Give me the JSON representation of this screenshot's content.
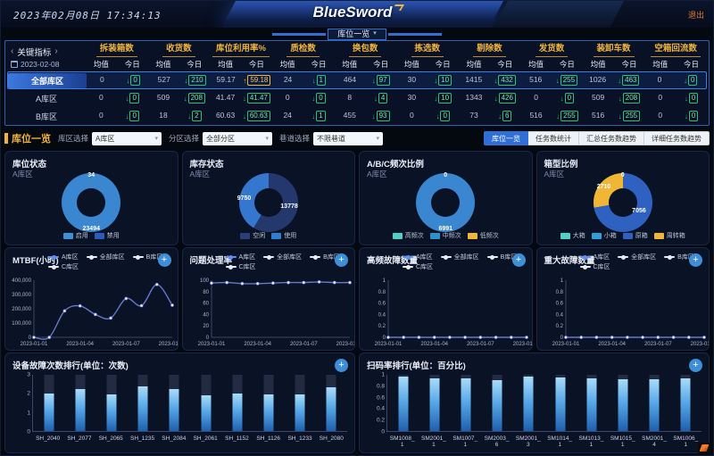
{
  "colors": {
    "accent_orange": "#f0b43c",
    "accent_green": "#2fbf71",
    "accent_blue": "#2f6fd6",
    "line_color": "#6979c9",
    "legend_a_color": "#5b8ff9",
    "legend_other_color": "#e6ecf8"
  },
  "icons": {
    "prev": "‹",
    "next": "›",
    "caret_down": "▾",
    "arrow_down": "↓",
    "arrow_up": "↑",
    "plus": "+"
  },
  "header": {
    "datetime": "2023年02月08日 17:34:13",
    "logo_text": "BlueSword",
    "logout_label": "退出",
    "center_tab": "库位一览"
  },
  "kpi_table": {
    "title": "关键指标",
    "date": "2023-02-08",
    "sub_avg": "均值",
    "sub_today": "今日",
    "columns": [
      "拆装箱数",
      "收货数",
      "库位利用率%",
      "质检数",
      "换包数",
      "拣选数",
      "剔除数",
      "发货数",
      "装卸车数",
      "空箱回流数"
    ],
    "rows": [
      {
        "name": "全部库区",
        "active": true,
        "cells": [
          {
            "avg": "0",
            "today": "0",
            "dir": "down"
          },
          {
            "avg": "527",
            "today": "210",
            "dir": "down"
          },
          {
            "avg": "59.17",
            "today": "59.18",
            "dir": "up"
          },
          {
            "avg": "24",
            "today": "1",
            "dir": "down"
          },
          {
            "avg": "464",
            "today": "97",
            "dir": "down"
          },
          {
            "avg": "30",
            "today": "10",
            "dir": "down"
          },
          {
            "avg": "1415",
            "today": "432",
            "dir": "down"
          },
          {
            "avg": "516",
            "today": "255",
            "dir": "down"
          },
          {
            "avg": "1026",
            "today": "463",
            "dir": "down"
          },
          {
            "avg": "0",
            "today": "0",
            "dir": "down"
          }
        ]
      },
      {
        "name": "A库区",
        "active": false,
        "cells": [
          {
            "avg": "0",
            "today": "0",
            "dir": "down"
          },
          {
            "avg": "509",
            "today": "208",
            "dir": "down"
          },
          {
            "avg": "41.47",
            "today": "41.47",
            "dir": "down"
          },
          {
            "avg": "0",
            "today": "0",
            "dir": "down"
          },
          {
            "avg": "8",
            "today": "4",
            "dir": "down"
          },
          {
            "avg": "30",
            "today": "10",
            "dir": "down"
          },
          {
            "avg": "1343",
            "today": "426",
            "dir": "down"
          },
          {
            "avg": "0",
            "today": "0",
            "dir": "down"
          },
          {
            "avg": "509",
            "today": "208",
            "dir": "down"
          },
          {
            "avg": "0",
            "today": "0",
            "dir": "down"
          }
        ]
      },
      {
        "name": "B库区",
        "active": false,
        "cells": [
          {
            "avg": "0",
            "today": "0",
            "dir": "down"
          },
          {
            "avg": "18",
            "today": "2",
            "dir": "down"
          },
          {
            "avg": "60.63",
            "today": "60.63",
            "dir": "down"
          },
          {
            "avg": "24",
            "today": "1",
            "dir": "down"
          },
          {
            "avg": "455",
            "today": "93",
            "dir": "down"
          },
          {
            "avg": "0",
            "today": "0",
            "dir": "down"
          },
          {
            "avg": "73",
            "today": "6",
            "dir": "down"
          },
          {
            "avg": "516",
            "today": "255",
            "dir": "down"
          },
          {
            "avg": "516",
            "today": "255",
            "dir": "down"
          },
          {
            "avg": "0",
            "today": "0",
            "dir": "down"
          }
        ]
      }
    ]
  },
  "filter_bar": {
    "section_title": "库位一览",
    "filters": [
      {
        "label": "库区选择",
        "value": "A库区"
      },
      {
        "label": "分区选择",
        "value": "全部分区"
      },
      {
        "label": "巷道选择",
        "value": "不限巷道"
      }
    ],
    "view_tabs": [
      {
        "label": "库位一览",
        "active": true
      },
      {
        "label": "任务数统计",
        "active": false
      },
      {
        "label": "汇总任务数趋势",
        "active": false
      },
      {
        "label": "详细任务数趋势",
        "active": false
      }
    ]
  },
  "chart_data": {
    "donuts": [
      {
        "type": "pie",
        "title": "库位状态",
        "subtitle": "A库区",
        "segments": [
          {
            "name": "启用",
            "value": 23494,
            "color": "#3a86d0"
          },
          {
            "name": "禁用",
            "value": 34,
            "color": "#24407e"
          }
        ],
        "legend": [
          {
            "name": "启用",
            "color": "#3d8fd8"
          },
          {
            "name": "禁用",
            "color": "#2a5cb8"
          }
        ],
        "labels": [
          {
            "text": "34",
            "pos": "top"
          },
          {
            "text": "23494",
            "pos": "bottom"
          }
        ]
      },
      {
        "type": "pie",
        "title": "库存状态",
        "subtitle": "A库区",
        "segments": [
          {
            "name": "空闲",
            "value": 13778,
            "color": "#24386e"
          },
          {
            "name": "使用",
            "value": 9750,
            "color": "#3577cf"
          }
        ],
        "legend": [
          {
            "name": "空闲",
            "color": "#2a3f78"
          },
          {
            "name": "使用",
            "color": "#2e7fd0"
          }
        ],
        "labels": [
          {
            "text": "9750",
            "pos": "left"
          },
          {
            "text": "13778",
            "pos": "right"
          }
        ]
      },
      {
        "type": "pie",
        "title": "A/B/C频次比例",
        "subtitle": "A库区",
        "segments": [
          {
            "name": "高频次",
            "value": 0,
            "color": "#52d0c8"
          },
          {
            "name": "中频次",
            "value": 6991,
            "color": "#3a86d0"
          },
          {
            "name": "低频次",
            "value": 0,
            "color": "#f2b636"
          }
        ],
        "legend": [
          {
            "name": "高频次",
            "color": "#52d0c8"
          },
          {
            "name": "中频次",
            "color": "#2e8fd0"
          },
          {
            "name": "低频次",
            "color": "#f2b636"
          }
        ],
        "labels": [
          {
            "text": "0",
            "pos": "top"
          },
          {
            "text": "6991",
            "pos": "bottom"
          }
        ]
      },
      {
        "type": "pie",
        "title": "箱型比例",
        "subtitle": "A库区",
        "segments": [
          {
            "name": "大箱",
            "value": 0,
            "color": "#52d0c8"
          },
          {
            "name": "小箱",
            "value": 0,
            "color": "#2e9fd8"
          },
          {
            "name": "原箱",
            "value": 7056,
            "color": "#2f62c0"
          },
          {
            "name": "周转箱",
            "value": 2710,
            "color": "#f2b636"
          }
        ],
        "legend": [
          {
            "name": "大箱",
            "color": "#52d0c8"
          },
          {
            "name": "小箱",
            "color": "#2e9fd8"
          },
          {
            "name": "原箱",
            "color": "#2f62c0"
          },
          {
            "name": "周转箱",
            "color": "#f2b636"
          }
        ],
        "labels": [
          {
            "text": "0",
            "pos": "top"
          },
          {
            "text": "2710",
            "pos": "topleft"
          },
          {
            "text": "7056",
            "pos": "bottomright"
          }
        ]
      }
    ],
    "line_charts": [
      {
        "type": "line",
        "title": "MTBF(小时)",
        "legend": [
          "A库区",
          "全部库区",
          "B库区",
          "C库区"
        ],
        "x_ticks": [
          "2023-01-01",
          "2023-01-04",
          "2023-01-07",
          "2023-01-10"
        ],
        "y_ticks": [
          "400,000",
          "300,000",
          "200,000",
          "100,000",
          "0"
        ],
        "y_max": 400000,
        "series": [
          {
            "name": "A库区",
            "values": [
              0,
              0,
              185000,
              220000,
              160000,
              135000,
              272000,
              222000,
              370000,
              225000
            ]
          }
        ]
      },
      {
        "type": "line",
        "title": "问题处理率",
        "legend": [
          "A库区",
          "全部库区",
          "B库区",
          "C库区"
        ],
        "x_ticks": [
          "2023-01-01",
          "2023-01-04",
          "2023-01-07",
          "2023-01-10"
        ],
        "y_ticks": [
          "100",
          "80",
          "60",
          "40",
          "20",
          "0"
        ],
        "y_max": 100,
        "series": [
          {
            "name": "A库区",
            "values": [
              95,
              96,
              94,
              94,
              95,
              96,
              96,
              97,
              96,
              96
            ]
          }
        ]
      },
      {
        "type": "line",
        "title": "高频故障数量",
        "legend": [
          "A库区",
          "全部库区",
          "B库区",
          "C库区"
        ],
        "x_ticks": [
          "2023-01-01",
          "2023-01-04",
          "2023-01-07",
          "2023-01-10"
        ],
        "y_ticks": [
          "1",
          "0.8",
          "0.6",
          "0.4",
          "0.2",
          "0"
        ],
        "y_max": 1,
        "series": [
          {
            "name": "A库区",
            "values": [
              0,
              0,
              0,
              0,
              0,
              0,
              0,
              0,
              0,
              0
            ]
          }
        ]
      },
      {
        "type": "line",
        "title": "重大故障数量",
        "legend": [
          "A库区",
          "全部库区",
          "B库区",
          "C库区"
        ],
        "x_ticks": [
          "2023-01-01",
          "2023-01-04",
          "2023-01-07",
          "2023-01-10"
        ],
        "y_ticks": [
          "1",
          "0.8",
          "0.6",
          "0.4",
          "0.2",
          "0"
        ],
        "y_max": 1,
        "series": [
          {
            "name": "A库区",
            "values": [
              0,
              0,
              0,
              0,
              0,
              0,
              0,
              0,
              0,
              0
            ]
          }
        ]
      }
    ],
    "bar_charts": [
      {
        "type": "bar",
        "title": "设备故障次数排行(单位：次数)",
        "y_ticks": [
          "3",
          "2",
          "1",
          "0"
        ],
        "y_max": 3,
        "categories": [
          "SH_2040",
          "SH_2077",
          "SH_2065",
          "SH_1235",
          "SH_2084",
          "SH_2061",
          "SH_1152",
          "SH_1126",
          "SH_1233",
          "SH_2080"
        ],
        "values": [
          2,
          2.25,
          1.95,
          2.4,
          2.25,
          1.9,
          2,
          1.95,
          1.95,
          2.35
        ]
      },
      {
        "type": "bar",
        "title": "扫码率排行(单位：百分比)",
        "y_ticks": [
          "1",
          "0.8",
          "0.6",
          "0.4",
          "0.2",
          "0"
        ],
        "y_max": 1,
        "categories": [
          "SM1008_1",
          "SM2001_1",
          "SM1007_1",
          "SM2003_6",
          "SM2001_3",
          "SM1014_1",
          "SM1013_1",
          "SM1015_1",
          "SM2001_4",
          "SM1006_1"
        ],
        "values": [
          0.97,
          0.93,
          0.94,
          0.91,
          0.97,
          0.96,
          0.94,
          0.92,
          0.92,
          0.93
        ]
      }
    ]
  }
}
